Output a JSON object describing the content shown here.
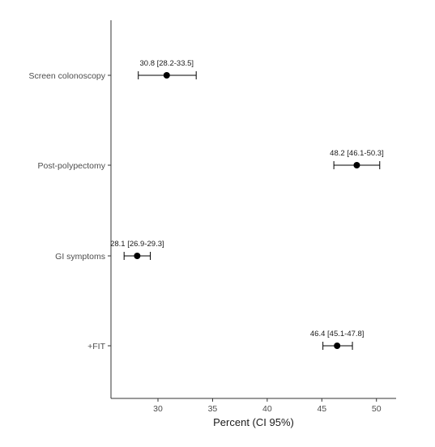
{
  "chart_data": {
    "type": "scatter",
    "subtype": "forest-plot-with-error-bars",
    "title": "",
    "xlabel": "Percent (CI 95%)",
    "ylabel": "",
    "xlim": [
      25.7,
      51.8
    ],
    "x_ticks": [
      30,
      35,
      40,
      45,
      50
    ],
    "grid": false,
    "legend": "none",
    "categories": [
      "Screen colonoscopy",
      "Post-polypectomy",
      "GI symptoms",
      "+FIT"
    ],
    "series": [
      {
        "points": [
          {
            "category": "Screen colonoscopy",
            "value": 30.8,
            "ci_low": 28.2,
            "ci_high": 33.5,
            "label": "30.8 [28.2-33.5]"
          },
          {
            "category": "Post-polypectomy",
            "value": 48.2,
            "ci_low": 46.1,
            "ci_high": 50.3,
            "label": "48.2 [46.1-50.3]"
          },
          {
            "category": "GI symptoms",
            "value": 28.1,
            "ci_low": 26.9,
            "ci_high": 29.3,
            "label": "28.1 [26.9-29.3]"
          },
          {
            "category": "+FIT",
            "value": 46.4,
            "ci_low": 45.1,
            "ci_high": 47.8,
            "label": "46.4 [45.1-47.8]"
          }
        ]
      }
    ],
    "colors": {
      "axis": "#333333",
      "point": "#000000",
      "text": "#4d4d4d"
    }
  }
}
